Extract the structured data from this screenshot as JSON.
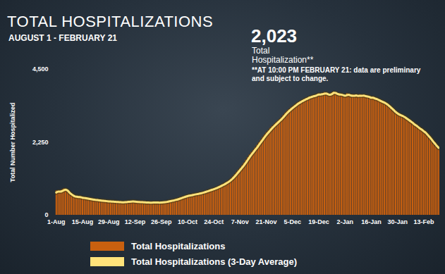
{
  "chart_data": {
    "type": "bar",
    "title": "TOTAL HOSPITALIZATIONS",
    "subtitle": "AUGUST 1 - FEBRUARY 21",
    "annotations": [
      "2,023",
      "Total Hospitalization**",
      "**AT 10:00 PM FEBRUARY 21: data are preliminary and subject to change."
    ],
    "y_label": "Total Number Hospitalized",
    "categories": [
      "1-Aug",
      null,
      null,
      null,
      null,
      null,
      null,
      null,
      null,
      null,
      null,
      null,
      null,
      null,
      "15-Aug",
      null,
      null,
      null,
      null,
      null,
      null,
      null,
      null,
      null,
      null,
      null,
      null,
      null,
      "29-Aug",
      null,
      null,
      null,
      null,
      null,
      null,
      null,
      null,
      null,
      null,
      null,
      null,
      null,
      "12-Sep",
      null,
      null,
      null,
      null,
      null,
      null,
      null,
      null,
      null,
      null,
      null,
      null,
      null,
      "26-Sep",
      null,
      null,
      null,
      null,
      null,
      null,
      null,
      null,
      null,
      null,
      null,
      null,
      null,
      "10-Oct",
      null,
      null,
      null,
      null,
      null,
      null,
      null,
      null,
      null,
      null,
      null,
      null,
      null,
      "24-Oct",
      null,
      null,
      null,
      null,
      null,
      null,
      null,
      null,
      null,
      null,
      null,
      null,
      null,
      "7-Nov",
      null,
      null,
      null,
      null,
      null,
      null,
      null,
      null,
      null,
      null,
      null,
      null,
      null,
      "21-Nov",
      null,
      null,
      null,
      null,
      null,
      null,
      null,
      null,
      null,
      null,
      null,
      null,
      null,
      "5-Dec",
      null,
      null,
      null,
      null,
      null,
      null,
      null,
      null,
      null,
      null,
      null,
      null,
      null,
      "19-Dec",
      null,
      null,
      null,
      null,
      null,
      null,
      null,
      null,
      null,
      null,
      null,
      null,
      null,
      "2-Jan",
      null,
      null,
      null,
      null,
      null,
      null,
      null,
      null,
      null,
      null,
      null,
      null,
      null,
      "16-Jan",
      null,
      null,
      null,
      null,
      null,
      null,
      null,
      null,
      null,
      null,
      null,
      null,
      null,
      "30-Jan",
      null,
      null,
      null,
      null,
      null,
      null,
      null,
      null,
      null,
      null,
      null,
      null,
      null,
      "13-Feb",
      null,
      null,
      null,
      null,
      null,
      null,
      null,
      null
    ],
    "series": [
      {
        "name": "Total Hospitalizations",
        "type": "bar",
        "color": "#c9600f",
        "values": [
          760,
          730,
          700,
          790,
          820,
          760,
          700,
          640,
          600,
          580,
          560,
          570,
          550,
          540,
          530,
          520,
          510,
          500,
          495,
          480,
          470,
          465,
          460,
          450,
          445,
          440,
          430,
          425,
          420,
          420,
          415,
          410,
          405,
          400,
          400,
          395,
          400,
          410,
          415,
          420,
          425,
          420,
          415,
          410,
          405,
          400,
          400,
          395,
          390,
          390,
          385,
          390,
          395,
          390,
          385,
          390,
          395,
          400,
          410,
          420,
          435,
          450,
          460,
          470,
          490,
          510,
          530,
          550,
          570,
          585,
          600,
          610,
          620,
          640,
          650,
          660,
          670,
          690,
          700,
          720,
          740,
          760,
          780,
          800,
          820,
          840,
          870,
          900,
          930,
          960,
          990,
          1030,
          1070,
          1120,
          1180,
          1250,
          1320,
          1390,
          1450,
          1530,
          1610,
          1700,
          1780,
          1860,
          1940,
          2000,
          2080,
          2160,
          2240,
          2320,
          2400,
          2480,
          2550,
          2610,
          2680,
          2740,
          2790,
          2850,
          2900,
          2950,
          3010,
          3080,
          3150,
          3210,
          3260,
          3310,
          3350,
          3400,
          3440,
          3480,
          3510,
          3540,
          3570,
          3600,
          3620,
          3650,
          3660,
          3680,
          3700,
          3720,
          3750,
          3700,
          3760,
          3790,
          3720,
          3680,
          3740,
          3780,
          3800,
          3730,
          3690,
          3760,
          3710,
          3650,
          3700,
          3760,
          3690,
          3640,
          3720,
          3700,
          3660,
          3680,
          3720,
          3650,
          3700,
          3670,
          3630,
          3650,
          3600,
          3620,
          3580,
          3550,
          3530,
          3500,
          3470,
          3450,
          3400,
          3350,
          3300,
          3240,
          3180,
          3140,
          3100,
          3080,
          3060,
          3020,
          2980,
          2940,
          2900,
          2850,
          2810,
          2760,
          2720,
          2680,
          2630,
          2590,
          2550,
          2490,
          2420,
          2350,
          2280,
          2200,
          2130,
          2070,
          2023
        ]
      },
      {
        "name": "Total Hospitalizations (3-Day Average)",
        "type": "line",
        "color": "#ffe27a",
        "values": [
          700,
          730,
          730,
          740,
          770,
          790,
          760,
          700,
          650,
          610,
          580,
          570,
          560,
          555,
          540,
          530,
          520,
          510,
          500,
          490,
          480,
          470,
          465,
          458,
          450,
          445,
          438,
          432,
          425,
          422,
          418,
          415,
          410,
          405,
          402,
          398,
          398,
          402,
          408,
          415,
          420,
          422,
          418,
          412,
          406,
          402,
          400,
          396,
          392,
          390,
          388,
          388,
          390,
          392,
          390,
          388,
          390,
          395,
          402,
          410,
          422,
          435,
          448,
          460,
          475,
          490,
          510,
          530,
          550,
          570,
          588,
          602,
          612,
          625,
          638,
          650,
          660,
          675,
          688,
          705,
          722,
          742,
          762,
          782,
          802,
          822,
          845,
          872,
          900,
          930,
          960,
          995,
          1030,
          1075,
          1125,
          1185,
          1250,
          1320,
          1390,
          1460,
          1530,
          1610,
          1695,
          1780,
          1860,
          1935,
          2010,
          2080,
          2160,
          2240,
          2320,
          2400,
          2475,
          2545,
          2610,
          2675,
          2735,
          2790,
          2845,
          2900,
          2955,
          3015,
          3080,
          3145,
          3205,
          3255,
          3305,
          3350,
          3395,
          3440,
          3475,
          3510,
          3540,
          3570,
          3595,
          3625,
          3645,
          3665,
          3680,
          3700,
          3725,
          3725,
          3735,
          3750,
          3755,
          3730,
          3715,
          3735,
          3775,
          3770,
          3740,
          3725,
          3720,
          3705,
          3685,
          3705,
          3715,
          3695,
          3685,
          3685,
          3695,
          3680,
          3685,
          3685,
          3690,
          3675,
          3665,
          3650,
          3625,
          3625,
          3600,
          3585,
          3555,
          3525,
          3500,
          3475,
          3440,
          3400,
          3350,
          3295,
          3240,
          3185,
          3140,
          3105,
          3080,
          3055,
          3020,
          2980,
          2940,
          2895,
          2855,
          2805,
          2765,
          2720,
          2675,
          2635,
          2590,
          2545,
          2485,
          2420,
          2350,
          2275,
          2205,
          2135,
          2075
        ]
      }
    ],
    "ylim": [
      0,
      4500
    ],
    "yticks": [
      0,
      2250,
      4500
    ],
    "grid": false,
    "legend": "bottom-left"
  }
}
